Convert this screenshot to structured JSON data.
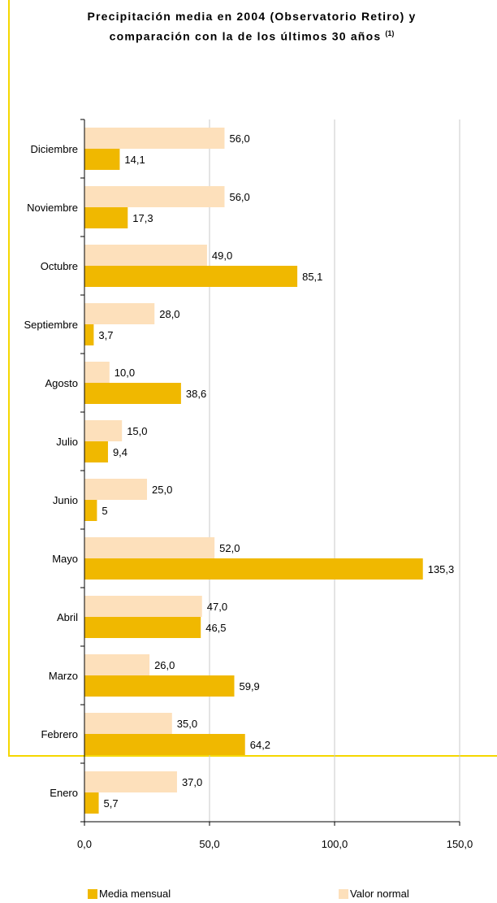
{
  "chart_data": {
    "type": "bar",
    "orientation": "horizontal",
    "title": "Precipitación media en 2004 (Observatorio Retiro) y comparación con la de los últimos 30 años",
    "title_sup": "(1)",
    "categories": [
      "Enero",
      "Febrero",
      "Marzo",
      "Abril",
      "Mayo",
      "Junio",
      "Julio",
      "Agosto",
      "Septiembre",
      "Octubre",
      "Noviembre",
      "Diciembre"
    ],
    "series": [
      {
        "name": "Media mensual",
        "color": "#f0b800",
        "values": [
          5.7,
          64.2,
          59.9,
          46.5,
          135.3,
          5,
          9.4,
          38.6,
          3.7,
          85.1,
          17.3,
          14.1
        ],
        "labels": [
          "5,7",
          "64,2",
          "59,9",
          "46,5",
          "135,3",
          "5",
          "9,4",
          "38,6",
          "3,7",
          "85,1",
          "17,3",
          "14,1"
        ]
      },
      {
        "name": "Valor normal",
        "color": "#fde0bb",
        "values": [
          37.0,
          35.0,
          26.0,
          47.0,
          52.0,
          25.0,
          15.0,
          10.0,
          28.0,
          49.0,
          56.0,
          56.0
        ],
        "labels": [
          "37,0",
          "35,0",
          "26,0",
          "47,0",
          "52,0",
          "25,0",
          "15,0",
          "10,0",
          "28,0",
          "49,0",
          "56,0",
          "56,0"
        ]
      }
    ],
    "xlim": [
      0,
      150
    ],
    "xticks": [
      0,
      50,
      100,
      150
    ],
    "xtick_labels": [
      "0,0",
      "50,0",
      "100,0",
      "150,0"
    ],
    "grid": true,
    "legend_position": "bottom",
    "frame_color": "#f5d700",
    "grid_color": "#c8c8c8"
  }
}
